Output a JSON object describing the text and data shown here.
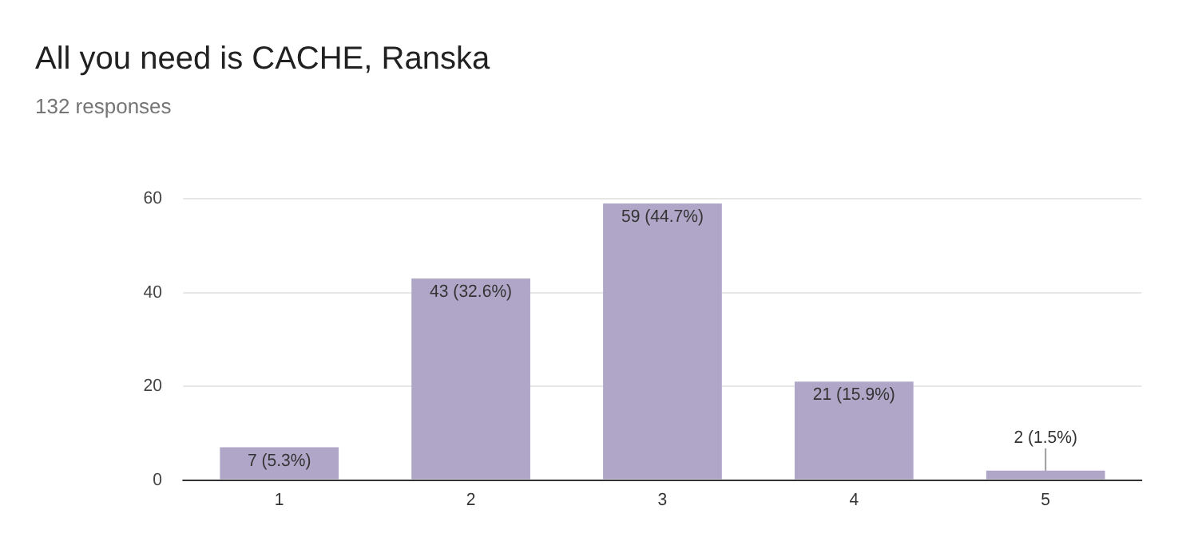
{
  "chart_data": {
    "type": "bar",
    "title": "All you need is CACHE, Ranska",
    "subtitle": "132 responses",
    "categories": [
      "1",
      "2",
      "3",
      "4",
      "5"
    ],
    "values": [
      7,
      43,
      59,
      21,
      2
    ],
    "value_labels": [
      "7 (5.3%)",
      "43 (32.6%)",
      "59 (44.7%)",
      "21 (15.9%)",
      "2 (1.5%)"
    ],
    "color": "#b0a7c8",
    "ylim": [
      0,
      60
    ],
    "yticks": [
      0,
      20,
      40,
      60
    ],
    "grid": "y",
    "legend": false
  }
}
